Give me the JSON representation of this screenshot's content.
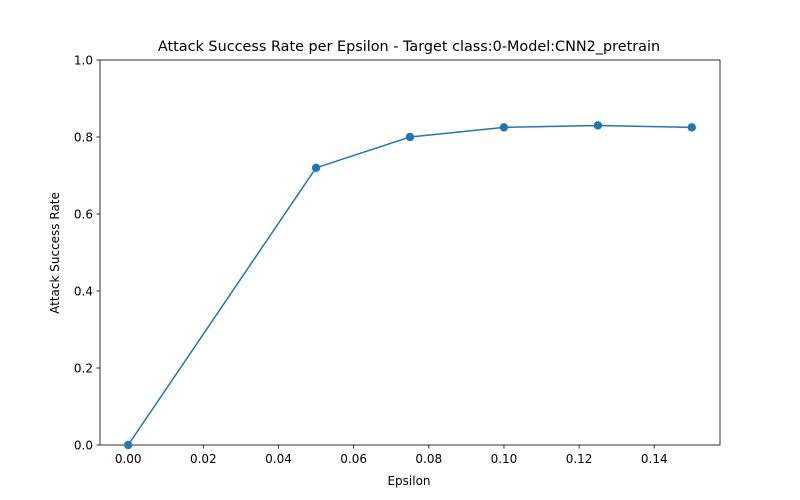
{
  "chart_data": {
    "type": "line",
    "title": "Attack Success Rate per Epsilon - Target class:0-Model:CNN2_pretrain",
    "xlabel": "Epsilon",
    "ylabel": "Attack Success Rate",
    "x": [
      0.0,
      0.05,
      0.075,
      0.1,
      0.125,
      0.15
    ],
    "series": [
      {
        "values": [
          0.0,
          0.72,
          0.8,
          0.825,
          0.83,
          0.825
        ],
        "color": "#1f77b4",
        "marker": "circle"
      }
    ],
    "xlim": [
      -0.0075,
      0.1575
    ],
    "ylim": [
      0.0,
      1.0
    ],
    "xticks": [
      0.0,
      0.02,
      0.04,
      0.06,
      0.08,
      0.1,
      0.12,
      0.14
    ],
    "xtick_labels": [
      "0.00",
      "0.02",
      "0.04",
      "0.06",
      "0.08",
      "0.10",
      "0.12",
      "0.14"
    ],
    "yticks": [
      0.0,
      0.2,
      0.4,
      0.6,
      0.8,
      1.0
    ],
    "ytick_labels": [
      "0.0",
      "0.2",
      "0.4",
      "0.6",
      "0.8",
      "1.0"
    ],
    "grid": false,
    "legend": false
  }
}
